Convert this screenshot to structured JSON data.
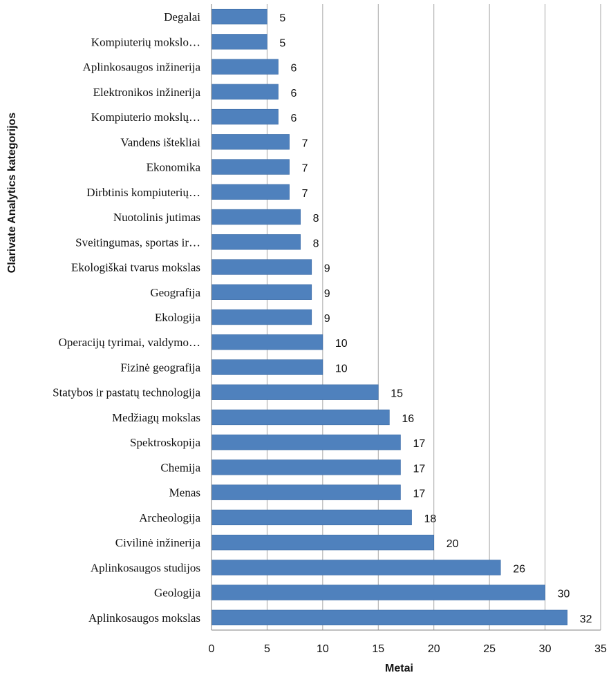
{
  "chart_data": {
    "type": "bar",
    "orientation": "horizontal",
    "categories": [
      "Degalai",
      "Kompiuterių mokslo…",
      "Aplinkosaugos inžinerija",
      "Elektronikos inžinerija",
      "Kompiuterio mokslų…",
      "Vandens ištekliai",
      "Ekonomika",
      "Dirbtinis kompiuterių…",
      "Nuotolinis jutimas",
      "Sveitingumas, sportas ir…",
      "Ekologiškai tvarus mokslas",
      "Geografija",
      "Ekologija",
      "Operacijų tyrimai,  valdymo…",
      "Fizinė geografija",
      "Statybos ir pastatų technologija",
      "Medžiagų mokslas",
      "Spektroskopija",
      "Chemija",
      "Menas",
      "Archeologija",
      "Civilinė inžinerija",
      "Aplinkosaugos studijos",
      "Geologija",
      "Aplinkosaugos mokslas"
    ],
    "values": [
      5,
      5,
      6,
      6,
      6,
      7,
      7,
      7,
      8,
      8,
      9,
      9,
      9,
      10,
      10,
      15,
      16,
      17,
      17,
      17,
      18,
      20,
      26,
      30,
      32
    ],
    "xlabel": "Metai",
    "ylabel": "Clarivate Analytics kategorijos",
    "xlim": [
      0,
      35
    ],
    "xticks": [
      "0",
      "5",
      "10",
      "15",
      "20",
      "25",
      "30",
      "35"
    ],
    "grid": "vertical",
    "data_labels": true,
    "legend": "none",
    "colors": {
      "bar": "#4f81bd",
      "bar_edge": "#3a6aa5",
      "grid": "#a6a6a6",
      "axis": "#808080",
      "text": "#111111"
    }
  }
}
